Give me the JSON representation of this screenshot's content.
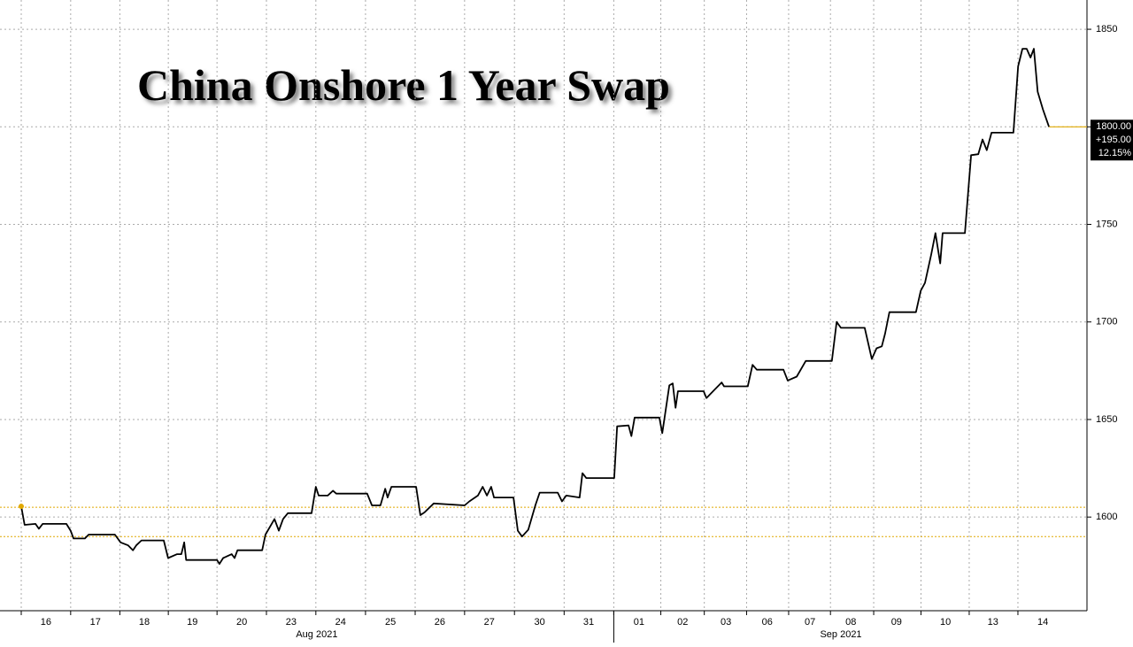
{
  "chart_data": {
    "type": "line",
    "title": "China Onshore 1 Year Swap",
    "series": [
      {
        "name": "China Onshore 1 Year Swap",
        "color": "#000000",
        "x": [
          0,
          0.07,
          0.3,
          0.37,
          0.45,
          0.95,
          1.04,
          1.1,
          1.34,
          1.42,
          1.97,
          2.09,
          2.25,
          2.35,
          2.42,
          2.53,
          3.0,
          3.09,
          3.28,
          3.37,
          3.43,
          3.47,
          3.58,
          4.12,
          4.17,
          4.25,
          4.43,
          4.49,
          4.55,
          5.07,
          5.14,
          5.33,
          5.42,
          5.51,
          5.61,
          6.11,
          6.2,
          6.26,
          6.45,
          6.56,
          6.63,
          7.28,
          7.38,
          7.56,
          7.66,
          7.71,
          7.79,
          8.31,
          8.4,
          8.49,
          8.68,
          9.33,
          9.43,
          9.61,
          9.71,
          9.8,
          9.89,
          9.95,
          10.36,
          10.45,
          10.54,
          10.67,
          10.82,
          10.91,
          11.29,
          11.38,
          11.47,
          11.75,
          11.81,
          11.89,
          12.48,
          12.54,
          12.78,
          12.84,
          12.91,
          13.43,
          13.49,
          13.64,
          13.71,
          13.77,
          13.82,
          14.36,
          14.42,
          14.6,
          14.74,
          14.79,
          15.29,
          15.39,
          15.48,
          16.04,
          16.13,
          16.32,
          16.51,
          17.06,
          17.16,
          17.25,
          17.75,
          17.9,
          18.0,
          18.11,
          18.18,
          18.27,
          18.83,
          18.93,
          19.02,
          19.15,
          19.24,
          19.34,
          19.39,
          19.86,
          19.99,
          20.14,
          20.23,
          20.32,
          20.42,
          20.88,
          20.98,
          21.07,
          21.16,
          21.24,
          21.31,
          21.39,
          21.5,
          21.63
        ],
        "values": [
          1605.5,
          1596,
          1596.5,
          1594,
          1596.5,
          1596.5,
          1593,
          1589,
          1589,
          1591,
          1591,
          1587,
          1585.5,
          1583,
          1585.5,
          1588,
          1588,
          1579,
          1581,
          1581,
          1587,
          1578,
          1578,
          1578,
          1576,
          1579,
          1581,
          1579,
          1583,
          1583,
          1591,
          1599,
          1593,
          1599,
          1602,
          1602,
          1615.5,
          1611,
          1611,
          1613.5,
          1612,
          1612,
          1606,
          1606,
          1614.5,
          1610,
          1615.5,
          1615.5,
          1601,
          1602.5,
          1607,
          1606,
          1608,
          1611,
          1615.5,
          1611,
          1615.5,
          1610,
          1610,
          1593,
          1590,
          1593.5,
          1606,
          1612.5,
          1612.5,
          1608,
          1611,
          1610,
          1622.5,
          1620,
          1620,
          1646.5,
          1647,
          1641.5,
          1651,
          1651,
          1643,
          1667.5,
          1668.5,
          1656,
          1664.5,
          1664.5,
          1661,
          1665.5,
          1669,
          1667,
          1667,
          1678,
          1675.5,
          1675.5,
          1670,
          1672,
          1680,
          1680,
          1700,
          1697,
          1697,
          1681,
          1686.5,
          1687.5,
          1694,
          1705,
          1705,
          1716,
          1720,
          1734.5,
          1745.5,
          1730,
          1745.5,
          1745.5,
          1785.5,
          1786,
          1793.5,
          1788,
          1797,
          1797,
          1831,
          1840,
          1840,
          1835.5,
          1840,
          1818,
          1809,
          1800
        ]
      }
    ],
    "xlim": [
      0,
      22
    ],
    "xticks": [
      {
        "value": 0.52,
        "label": "16"
      },
      {
        "value": 1.56,
        "label": "17"
      },
      {
        "value": 2.59,
        "label": "18"
      },
      {
        "value": 3.6,
        "label": "19"
      },
      {
        "value": 4.64,
        "label": "20"
      },
      {
        "value": 5.68,
        "label": "23"
      },
      {
        "value": 6.72,
        "label": "24"
      },
      {
        "value": 7.77,
        "label": "25"
      },
      {
        "value": 8.81,
        "label": "26"
      },
      {
        "value": 9.85,
        "label": "27"
      },
      {
        "value": 10.91,
        "label": "30"
      },
      {
        "value": 11.94,
        "label": "31"
      },
      {
        "value": 13.0,
        "label": "01"
      },
      {
        "value": 13.92,
        "label": "02"
      },
      {
        "value": 14.83,
        "label": "03"
      },
      {
        "value": 15.7,
        "label": "06"
      },
      {
        "value": 16.6,
        "label": "07"
      },
      {
        "value": 17.46,
        "label": "08"
      },
      {
        "value": 18.42,
        "label": "09"
      },
      {
        "value": 19.45,
        "label": "10"
      },
      {
        "value": 20.45,
        "label": "13"
      },
      {
        "value": 21.5,
        "label": "14"
      }
    ],
    "xticks_major": [
      {
        "value": 6.22,
        "label": "Aug 2021"
      },
      {
        "value": 17.25,
        "label": "Sep 2021"
      }
    ],
    "ylim": [
      1552,
      1865
    ],
    "yticks": [
      1600,
      1650,
      1700,
      1750,
      1800,
      1850
    ],
    "grid": true,
    "reference_lines": [
      {
        "value": 1605,
        "color": "#e0a800"
      },
      {
        "value": 1590,
        "color": "#e0a800"
      }
    ],
    "last_price": {
      "value": 1800,
      "label": "1800.00",
      "change": "+195.00",
      "change_pct": "12.15%",
      "color": "#e0a800"
    }
  }
}
